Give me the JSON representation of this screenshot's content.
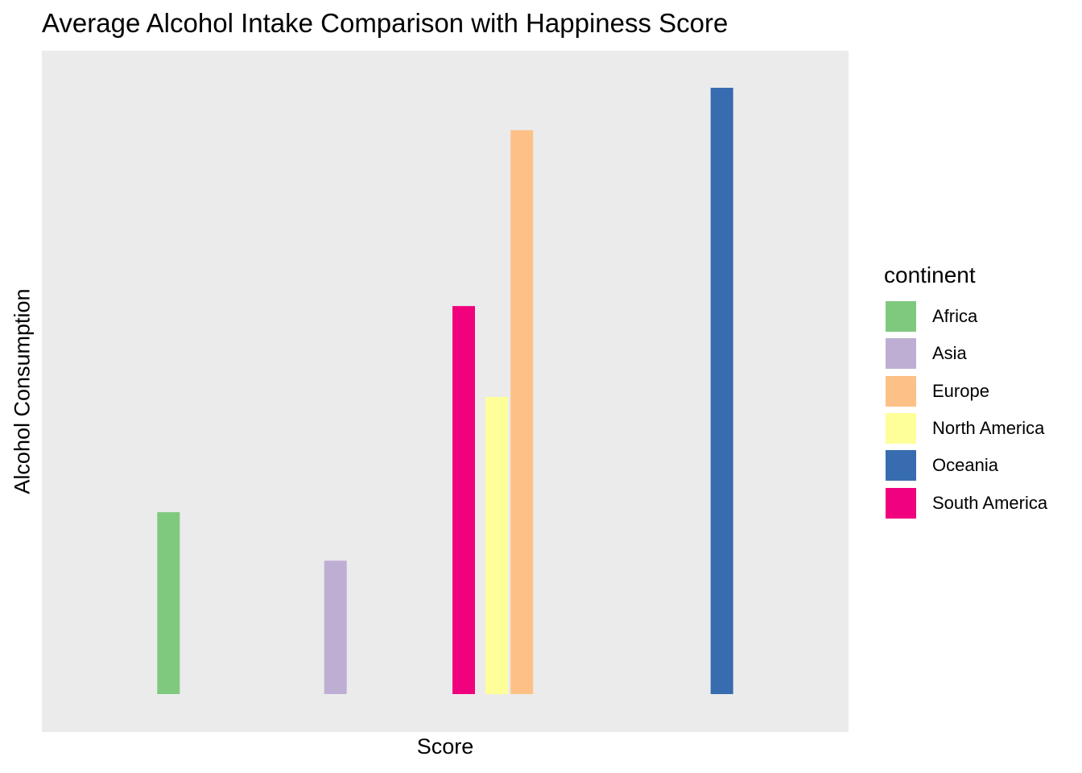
{
  "chart_data": {
    "type": "bar",
    "title": "Average Alcohol Intake Comparison with Happiness Score",
    "xlabel": "Score",
    "ylabel": "Alcohol Consumption",
    "x_ticks_shown": false,
    "y_ticks_shown": false,
    "grid": false,
    "panel_background": "#EBEBEB",
    "legend": {
      "title": "continent",
      "position": "right"
    },
    "bars": [
      {
        "continent": "Africa",
        "x": 0.157,
        "value": 0.3,
        "color": "#7FC97F"
      },
      {
        "continent": "Asia",
        "x": 0.364,
        "value": 0.22,
        "color": "#BEAED4"
      },
      {
        "continent": "South America",
        "x": 0.523,
        "value": 0.64,
        "color": "#F0027F"
      },
      {
        "continent": "North America",
        "x": 0.564,
        "value": 0.49,
        "color": "#FFFF99"
      },
      {
        "continent": "Europe",
        "x": 0.595,
        "value": 0.93,
        "color": "#FDC086"
      },
      {
        "continent": "Oceania",
        "x": 0.843,
        "value": 1.0,
        "color": "#386CB0"
      }
    ],
    "series": [
      {
        "name": "Africa",
        "color": "#7FC97F"
      },
      {
        "name": "Asia",
        "color": "#BEAED4"
      },
      {
        "name": "Europe",
        "color": "#FDC086"
      },
      {
        "name": "North America",
        "color": "#FFFF99"
      },
      {
        "name": "Oceania",
        "color": "#386CB0"
      },
      {
        "name": "South America",
        "color": "#F0027F"
      }
    ]
  }
}
